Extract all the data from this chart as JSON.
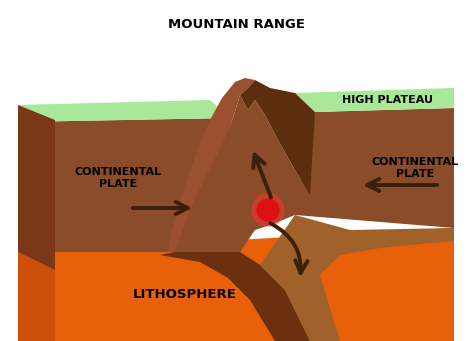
{
  "bg_color": "#ffffff",
  "orange_bright": "#e8600a",
  "orange_dark": "#cc5008",
  "brown_dark": "#5c2e0e",
  "brown_mid": "#8b4c2a",
  "brown_light": "#a0622a",
  "brown_plate_top": "#7a3a18",
  "green_color": "#a8e898",
  "red_dot_color": "#dd1111",
  "arrow_color": "#3a200a",
  "text_color": "#000000",
  "label_mountain": "MOUNTAIN RANGE",
  "label_high_plateau": "HIGH PLATEAU",
  "label_cont_left": "CONTINENTAL\nPLATE",
  "label_cont_right": "CONTINENTAL\nPLATE",
  "label_litho": "LITHOSPHERE"
}
